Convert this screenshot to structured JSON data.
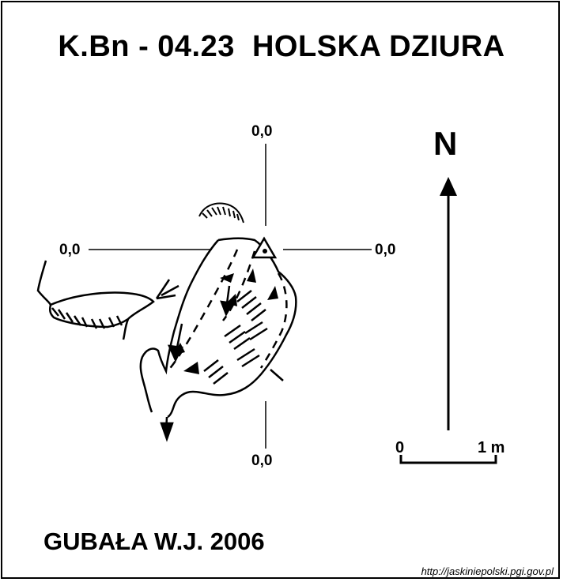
{
  "title": "K.Bn - 04.23  HOLSKA DZIURA",
  "coordinates": {
    "top": "0,0",
    "left": "0,0",
    "right": "0,0",
    "bottom": "0,0"
  },
  "north_label": "N",
  "scale": {
    "start_label": "0",
    "end_label": "1 m"
  },
  "author": "GUBAŁA W.J. 2006",
  "source_url": "http://jaskiniepolski.pgi.gov.pl",
  "colors": {
    "ink": "#000000",
    "paper": "#ffffff"
  }
}
